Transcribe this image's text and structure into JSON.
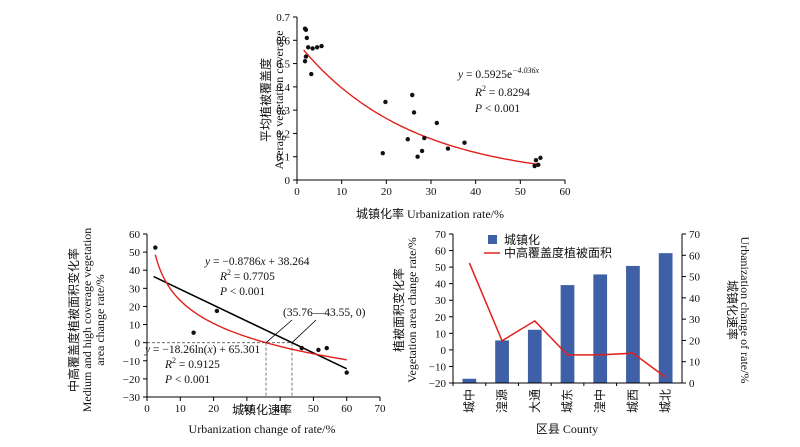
{
  "chart_data": [
    {
      "type": "scatter",
      "panel": "top",
      "xlabel": "城镇化率 Urbanization rate/%",
      "ylabel_cn": "平均植被覆盖度",
      "ylabel_en": "Average vegetation coverage",
      "xlim": [
        0,
        60
      ],
      "ylim": [
        0,
        0.7
      ],
      "xticks": [
        "0",
        "10",
        "20",
        "30",
        "40",
        "50",
        "60"
      ],
      "yticks": [
        "0",
        "0.1",
        "0.2",
        "0.3",
        "0.4",
        "0.5",
        "0.6",
        "0.7"
      ],
      "points": [
        [
          1.8,
          0.65
        ],
        [
          2.0,
          0.645
        ],
        [
          2.2,
          0.61
        ],
        [
          2.5,
          0.57
        ],
        [
          2.0,
          0.53
        ],
        [
          1.8,
          0.51
        ],
        [
          3.5,
          0.565
        ],
        [
          4.5,
          0.57
        ],
        [
          5.5,
          0.575
        ],
        [
          3.2,
          0.455
        ],
        [
          19.8,
          0.335
        ],
        [
          19.2,
          0.115
        ],
        [
          24.8,
          0.175
        ],
        [
          25.8,
          0.365
        ],
        [
          26.2,
          0.29
        ],
        [
          27.0,
          0.1
        ],
        [
          28.0,
          0.125
        ],
        [
          28.5,
          0.18
        ],
        [
          31.3,
          0.245
        ],
        [
          33.8,
          0.135
        ],
        [
          37.5,
          0.16
        ],
        [
          53.5,
          0.085
        ],
        [
          54.0,
          0.065
        ],
        [
          53.2,
          0.06
        ],
        [
          54.5,
          0.095
        ]
      ],
      "fit": {
        "a": 0.5925,
        "b": -4.036
      },
      "fit_range": [
        1.5,
        54.5
      ],
      "eq_y_prefix": "y",
      "eq_main": " = 0.5925e",
      "eq_exp": "−4.036x",
      "eq_r2_prefix": "R",
      "eq_r2_value": " = 0.8294",
      "eq_p": "P",
      "eq_p_value": " < 0.001",
      "colors": {
        "fit": "#e0211b",
        "points": "#111111"
      }
    },
    {
      "type": "scatter",
      "panel": "bottom-left",
      "xlabel_cn": "城镇化速率",
      "xlabel_en": "Urbanization change of rate/%",
      "ylabel_cn": "中高覆盖度植被面积变化率",
      "ylabel_en1": "Medium and high coverage vegetation",
      "ylabel_en2": "area change rate/%",
      "xlim": [
        0,
        70
      ],
      "ylim": [
        -30,
        60
      ],
      "xticks": [
        "0",
        "10",
        "20",
        "30",
        "40",
        "50",
        "60",
        "70"
      ],
      "yticks": [
        "−30",
        "−20",
        "−10",
        "0",
        "10",
        "20",
        "30",
        "40",
        "50",
        "60"
      ],
      "points": [
        [
          2.5,
          52.5
        ],
        [
          14.0,
          5.5
        ],
        [
          21.0,
          17.5
        ],
        [
          46.5,
          -3.0
        ],
        [
          51.5,
          -4.0
        ],
        [
          54.0,
          -3.0
        ],
        [
          60.0,
          -16.5
        ]
      ],
      "linear_fit": {
        "slope": -0.8786,
        "intercept": 38.264
      },
      "log_fit": {
        "a": -18.26,
        "b": 65.301
      },
      "intersection_x": [
        35.76,
        43.55
      ],
      "eq_lin_y": "y",
      "eq_lin_main": " = −0.8786",
      "eq_lin_x": "x",
      "eq_lin_rest": " + 38.264",
      "eq_lin_r2_prefix": "R",
      "eq_lin_r2_value": " = 0.7705",
      "eq_lin_p": "P",
      "eq_lin_p_value": " < 0.001",
      "eq_log_y": "y",
      "eq_log_main": " = −18.26ln(",
      "eq_log_x": "x",
      "eq_log_rest": ") + 65.301",
      "eq_log_r2_prefix": "R",
      "eq_log_r2_value": " = 0.9125",
      "eq_log_p": "P",
      "eq_log_p_value": " < 0.001",
      "annotation": "(35.76—43.55, 0)",
      "colors": {
        "linear": "#000000",
        "log": "#e0211b",
        "points": "#111111"
      }
    },
    {
      "type": "bar+line",
      "panel": "bottom-right",
      "xlabel": "区县 County",
      "left_ylabel_cn": "植被面积变化率",
      "left_ylabel_en": "Vegetation area change rate/%",
      "right_ylabel_cn": "城镇化速率",
      "right_ylabel_en": "Urbanization change of rate/%",
      "categories": [
        "城中",
        "湟源",
        "大通",
        "城东",
        "湟中",
        "城西",
        "城北"
      ],
      "left_ylim": [
        -20,
        70
      ],
      "right_ylim": [
        0,
        70
      ],
      "left_yticks": [
        "−20",
        "−10",
        "0",
        "10",
        "20",
        "30",
        "40",
        "50",
        "60",
        "70"
      ],
      "right_yticks": [
        "0",
        "10",
        "20",
        "30",
        "40",
        "50",
        "60",
        "70"
      ],
      "series": [
        {
          "name": "城镇化",
          "type": "bar",
          "axis": "right",
          "values": [
            2,
            20,
            25,
            46,
            51,
            55,
            61
          ]
        },
        {
          "name": "中高覆盖度植被面积",
          "type": "line",
          "axis": "left",
          "values": [
            52.5,
            5.5,
            17.5,
            -3,
            -3,
            -2,
            -16.5
          ]
        }
      ],
      "colors": {
        "bar": "#3f5fa6",
        "line": "#e0211b"
      }
    }
  ]
}
